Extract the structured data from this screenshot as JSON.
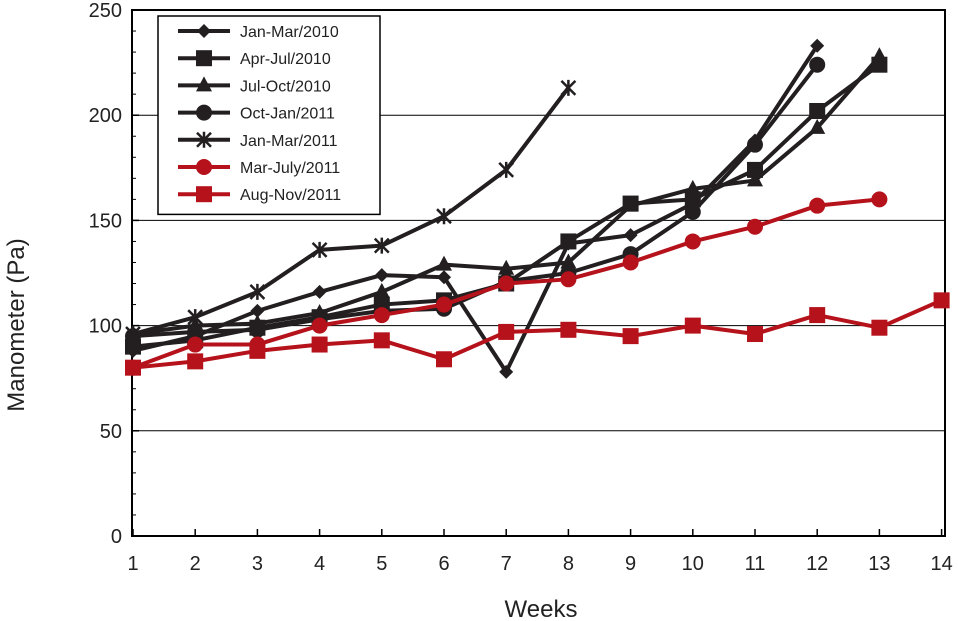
{
  "chart_data": {
    "type": "line",
    "title": "",
    "xlabel": "Weeks",
    "ylabel": "Manometer (Pa)",
    "xlim": [
      1,
      14
    ],
    "ylim": [
      0,
      250
    ],
    "x_ticks": [
      "1",
      "2",
      "3",
      "4",
      "5",
      "6",
      "7",
      "8",
      "9",
      "10",
      "11",
      "12",
      "13",
      "14"
    ],
    "y_ticks": [
      "0",
      "50",
      "100",
      "150",
      "200",
      "250"
    ],
    "grid": "horizontal",
    "legend_position": "top-left",
    "series": [
      {
        "name": "Jan-Mar/2010",
        "color": "#231f20",
        "marker": "diamond",
        "x": [
          1,
          2,
          3,
          4,
          5,
          6,
          7,
          8,
          9,
          10,
          11,
          12
        ],
        "y": [
          88,
          95,
          107,
          116,
          124,
          123,
          78,
          139,
          143,
          158,
          188,
          233
        ]
      },
      {
        "name": "Apr-Jul/2010",
        "color": "#231f20",
        "marker": "square",
        "x": [
          1,
          2,
          3,
          4,
          5,
          6,
          7,
          8,
          9,
          10,
          11,
          12,
          13
        ],
        "y": [
          90,
          93,
          99,
          104,
          110,
          112,
          120,
          140,
          158,
          160,
          174,
          202,
          224
        ]
      },
      {
        "name": "Jul-Oct/2010",
        "color": "#231f20",
        "marker": "triangle",
        "x": [
          1,
          2,
          3,
          4,
          5,
          6,
          7,
          8,
          9,
          10,
          11,
          12,
          13
        ],
        "y": [
          96,
          100,
          101,
          106,
          116,
          129,
          127,
          130,
          157,
          165,
          169,
          194,
          228
        ]
      },
      {
        "name": "Oct-Jan/2011",
        "color": "#231f20",
        "marker": "circle",
        "x": [
          1,
          2,
          3,
          4,
          5,
          6,
          7,
          8,
          9,
          10,
          11,
          12
        ],
        "y": [
          95,
          97,
          98,
          103,
          107,
          108,
          121,
          125,
          134,
          154,
          186,
          224
        ]
      },
      {
        "name": "Jan-Mar/2011",
        "color": "#231f20",
        "marker": "asterisk",
        "x": [
          1,
          2,
          3,
          4,
          5,
          6,
          7,
          8
        ],
        "y": [
          96,
          104,
          116,
          136,
          138,
          152,
          174,
          213
        ]
      },
      {
        "name": "Mar-July/2011",
        "color": "#b5121b",
        "marker": "circle",
        "x": [
          1,
          2,
          3,
          4,
          5,
          6,
          7,
          8,
          9,
          10,
          11,
          12,
          13
        ],
        "y": [
          80,
          91,
          91,
          100,
          105,
          110,
          120,
          122,
          130,
          140,
          147,
          157,
          160
        ]
      },
      {
        "name": "Aug-Nov/2011",
        "color": "#b5121b",
        "marker": "square",
        "x": [
          1,
          2,
          3,
          4,
          5,
          6,
          7,
          8,
          9,
          10,
          11,
          12,
          13,
          14
        ],
        "y": [
          80,
          83,
          88,
          91,
          93,
          84,
          97,
          98,
          95,
          100,
          96,
          105,
          99,
          112
        ]
      }
    ]
  }
}
